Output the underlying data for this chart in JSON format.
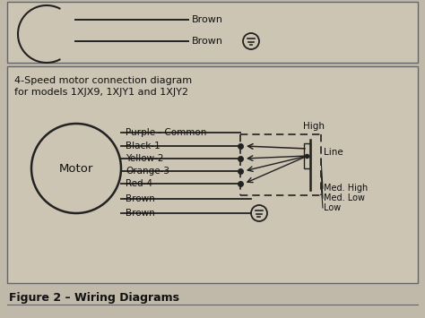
{
  "bg_color": "#c0b8a8",
  "box_color": "#cdc5b4",
  "title_line1": "4-Speed motor connection diagram",
  "title_line2": "for models 1XJX9, 1XJY1 and 1XJY2",
  "motor_label": "Motor",
  "wire_labels": [
    "Purple - Common",
    "Black-1",
    "Yellow-2",
    "Orange-3",
    "Red-4",
    "Brown",
    "Brown"
  ],
  "top_brown": [
    "Brown",
    "Brown"
  ],
  "right_labels": [
    "High",
    "Line",
    "Med. High",
    "Med. Low",
    "Low"
  ],
  "figure_caption": "Figure 2 – Wiring Diagrams",
  "line_color": "#222222",
  "text_color": "#111111"
}
